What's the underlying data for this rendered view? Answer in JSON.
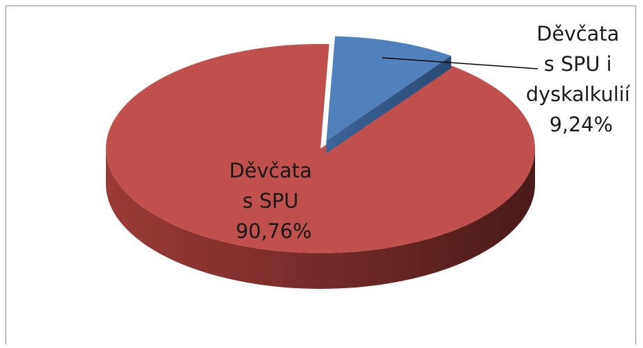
{
  "chart_data": {
    "type": "pie",
    "style": "3d-exploded",
    "slices": [
      {
        "label": [
          "Děvčata",
          "s SPU"
        ],
        "value": 90.76,
        "percent_label": "90,76%",
        "color": "#c0504d"
      },
      {
        "label": [
          "Děvčata",
          "s SPU i",
          "dyskalkulií"
        ],
        "value": 9.24,
        "percent_label": "9,24%",
        "color": "#4f81bd"
      }
    ]
  }
}
